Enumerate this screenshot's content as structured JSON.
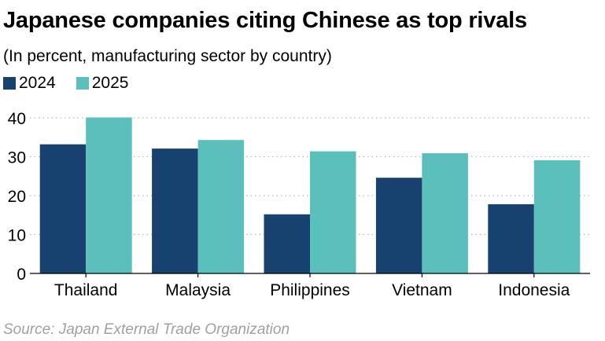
{
  "chart_data": {
    "type": "bar",
    "title": "Japanese companies citing Chinese as top rivals",
    "subtitle": "(In percent, manufacturing sector by country)",
    "categories": [
      "Thailand",
      "Malaysia",
      "Philippines",
      "Vietnam",
      "Indonesia"
    ],
    "series": [
      {
        "name": "2024",
        "color": "#17416e",
        "values": [
          33.2,
          32.1,
          15.2,
          24.6,
          17.8
        ]
      },
      {
        "name": "2025",
        "color": "#5bbfbb",
        "values": [
          40.1,
          34.3,
          31.4,
          30.9,
          29.1
        ]
      }
    ],
    "ylim": [
      0,
      40
    ],
    "yticks": [
      0,
      10,
      20,
      30,
      40
    ],
    "grid": true,
    "legend": "top-left",
    "xlabel": "",
    "ylabel": "",
    "source": "Source: Japan External Trade Organization"
  }
}
